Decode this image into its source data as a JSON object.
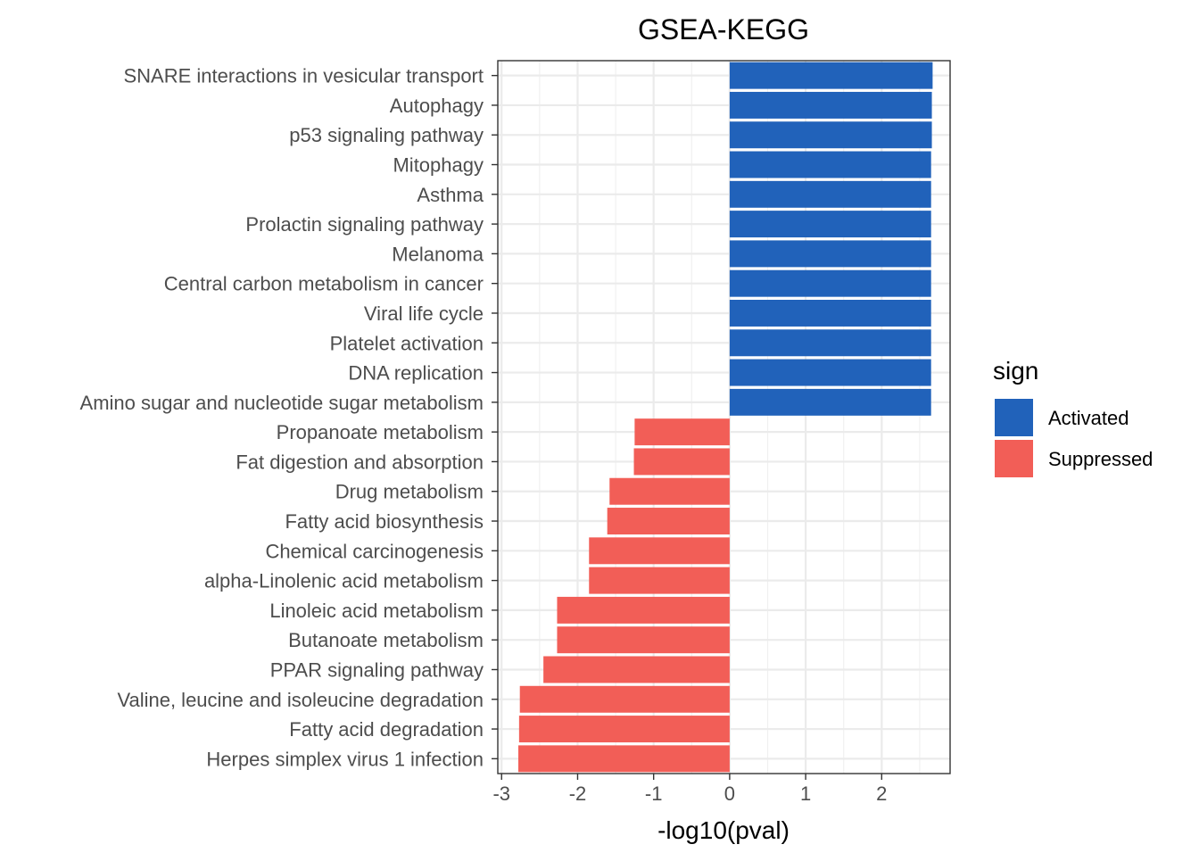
{
  "chart_data": {
    "type": "bar",
    "orientation": "horizontal",
    "title": "GSEA-KEGG",
    "xlabel": "-log10(pval)",
    "ylabel": "",
    "xlim": [
      -3.05,
      2.9
    ],
    "x_ticks": [
      -3,
      -2,
      -1,
      0,
      1,
      2
    ],
    "x_tick_labels": [
      "-3",
      "-2",
      "-1",
      "0",
      "1",
      "2"
    ],
    "grid": true,
    "legend": {
      "title": "sign",
      "position": "right",
      "entries": [
        {
          "label": "Activated",
          "color": "#2162BA"
        },
        {
          "label": "Suppressed",
          "color": "#F25E57"
        }
      ]
    },
    "categories": [
      "SNARE interactions in vesicular transport",
      "Autophagy",
      "p53 signaling pathway",
      "Mitophagy",
      "Asthma",
      "Prolactin signaling pathway",
      "Melanoma",
      "Central carbon metabolism in cancer",
      "Viral life cycle",
      "Platelet activation",
      "DNA replication",
      "Amino sugar and nucleotide sugar metabolism",
      "Propanoate metabolism",
      "Fat digestion and absorption",
      "Drug metabolism",
      "Fatty acid biosynthesis",
      "Chemical carcinogenesis",
      "alpha-Linolenic acid metabolism",
      "Linoleic acid metabolism",
      "Butanoate metabolism",
      "PPAR signaling pathway",
      "Valine, leucine and isoleucine degradation",
      "Fatty acid degradation",
      "Herpes simplex virus 1 infection"
    ],
    "values": [
      2.67,
      2.66,
      2.66,
      2.65,
      2.65,
      2.65,
      2.65,
      2.65,
      2.65,
      2.65,
      2.65,
      2.65,
      -1.25,
      -1.26,
      -1.58,
      -1.61,
      -1.85,
      -1.85,
      -2.27,
      -2.27,
      -2.45,
      -2.76,
      -2.77,
      -2.78
    ],
    "signs": [
      "Activated",
      "Activated",
      "Activated",
      "Activated",
      "Activated",
      "Activated",
      "Activated",
      "Activated",
      "Activated",
      "Activated",
      "Activated",
      "Activated",
      "Suppressed",
      "Suppressed",
      "Suppressed",
      "Suppressed",
      "Suppressed",
      "Suppressed",
      "Suppressed",
      "Suppressed",
      "Suppressed",
      "Suppressed",
      "Suppressed",
      "Suppressed"
    ]
  }
}
